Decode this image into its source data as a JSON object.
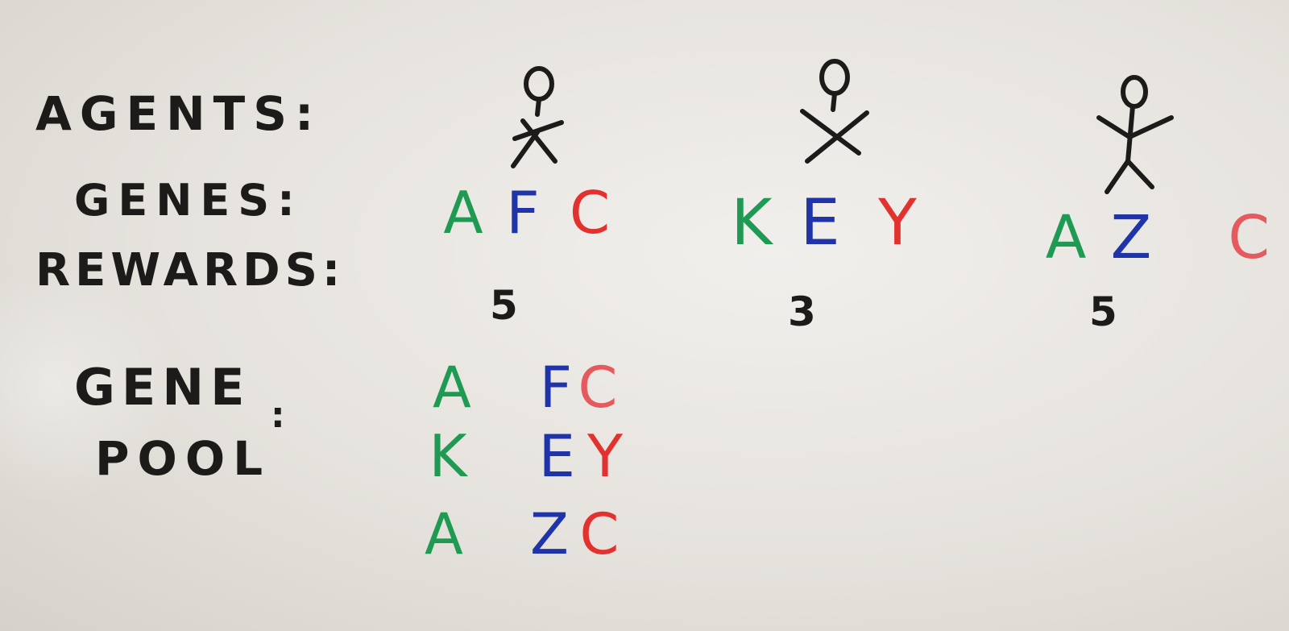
{
  "labels": {
    "agents": "AGENTS:",
    "genes": "GENES:",
    "rewards": "REWARDS:",
    "gene": "GENE",
    "pool": "POOL",
    "pool_colon": ":"
  },
  "agents": [
    {
      "icon": "stick-figure-icon",
      "genes": [
        "A",
        "F",
        "C"
      ],
      "reward": "5"
    },
    {
      "icon": "stick-figure-icon",
      "genes": [
        "K",
        "E",
        "Y"
      ],
      "reward": "3"
    },
    {
      "icon": "stick-figure-icon",
      "genes": [
        "A",
        "Z",
        "C"
      ],
      "reward": "5"
    }
  ],
  "gene_pool": [
    [
      "A",
      "F",
      "C"
    ],
    [
      "K",
      "E",
      "Y"
    ],
    [
      "A",
      "Z",
      "C"
    ]
  ],
  "colors": {
    "first_gene": "#1f9a52",
    "second_gene": "#1f34a8",
    "third_gene": "#e2322f",
    "ink": "#1d1b1a"
  }
}
